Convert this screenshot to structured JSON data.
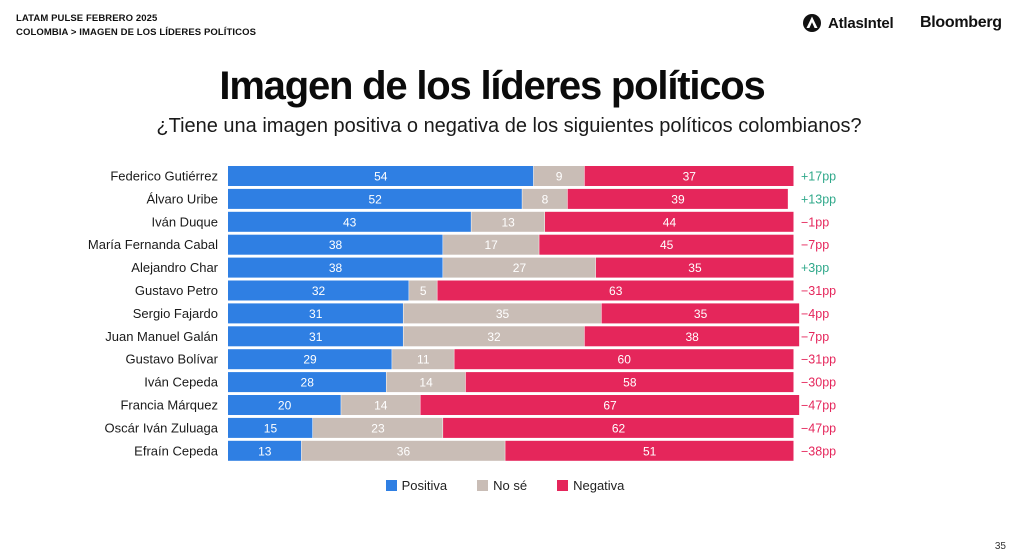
{
  "header": {
    "line1": "LATAM PULSE FEBRERO 2025",
    "line2": "COLOMBIA > IMAGEN DE LOS LÍDERES POLÍTICOS"
  },
  "brands": {
    "atlas": "AtlasIntel",
    "bloomberg": "Bloomberg"
  },
  "page_number": "35",
  "colors": {
    "positive": "#2f7fe3",
    "unsure": "#c9bdb6",
    "negative": "#e5265b",
    "diff_positive": "#2fa88a",
    "diff_negative": "#e5265b"
  },
  "chart_data": {
    "type": "bar",
    "orientation": "horizontal",
    "stacked": true,
    "title": "Imagen de los líderes políticos",
    "subtitle": "¿Tiene una imagen positiva o negativa de los siguientes políticos colombianos?",
    "categories": [
      "Federico Gutiérrez",
      "Álvaro Uribe",
      "Iván Duque",
      "María Fernanda Cabal",
      "Alejandro Char",
      "Gustavo Petro",
      "Sergio Fajardo",
      "Juan Manuel Galán",
      "Gustavo Bolívar",
      "Iván Cepeda",
      "Francia Márquez",
      "Oscár Iván Zuluaga",
      "Efraín Cepeda"
    ],
    "series": [
      {
        "name": "Positiva",
        "values": [
          54,
          52,
          43,
          38,
          38,
          32,
          31,
          31,
          29,
          28,
          20,
          15,
          13
        ]
      },
      {
        "name": "No sé",
        "values": [
          9,
          8,
          13,
          17,
          27,
          5,
          35,
          32,
          11,
          14,
          14,
          23,
          36
        ]
      },
      {
        "name": "Negativa",
        "values": [
          37,
          39,
          44,
          45,
          35,
          63,
          35,
          38,
          60,
          58,
          67,
          62,
          51
        ]
      }
    ],
    "net_labels": [
      "+17pp",
      "+13pp",
      "−1pp",
      "−7pp",
      "+3pp",
      "−31pp",
      "−4pp",
      "−7pp",
      "−31pp",
      "−30pp",
      "−47pp",
      "−47pp",
      "−38pp"
    ],
    "xlim": [
      0,
      100
    ],
    "legend_position": "bottom-center",
    "grid": false
  }
}
